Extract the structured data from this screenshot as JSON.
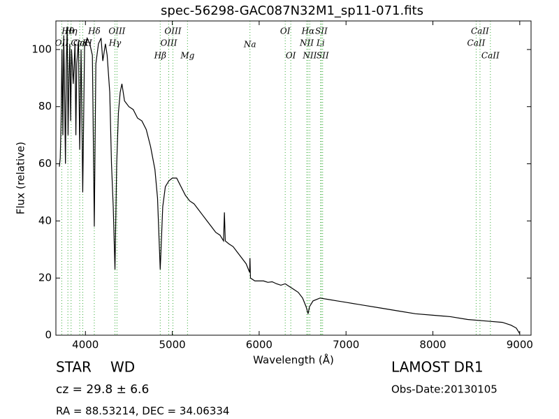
{
  "chart_data": {
    "type": "line",
    "title": "spec-56298-GAC087N32M1_sp11-071.fits",
    "xlabel": "Wavelength (Å)",
    "ylabel": "Flux (relative)",
    "xlim": [
      3660,
      9130
    ],
    "ylim": [
      0,
      110
    ],
    "xticks": [
      4000,
      5000,
      6000,
      7000,
      8000,
      9000
    ],
    "yticks": [
      0,
      20,
      40,
      60,
      80,
      100
    ],
    "series": [
      {
        "name": "flux",
        "color": "#000000",
        "x": [
          3700,
          3710,
          3720,
          3730,
          3740,
          3750,
          3760,
          3770,
          3780,
          3790,
          3800,
          3810,
          3820,
          3830,
          3840,
          3860,
          3880,
          3890,
          3900,
          3920,
          3934,
          3950,
          3969,
          3990,
          4020,
          4050,
          4080,
          4102,
          4120,
          4150,
          4180,
          4200,
          4230,
          4250,
          4280,
          4300,
          4320,
          4340,
          4360,
          4380,
          4400,
          4420,
          4450,
          4500,
          4550,
          4600,
          4650,
          4700,
          4750,
          4800,
          4830,
          4861,
          4890,
          4920,
          4960,
          5000,
          5050,
          5100,
          5150,
          5200,
          5250,
          5300,
          5350,
          5400,
          5450,
          5500,
          5550,
          5590,
          5600,
          5610,
          5650,
          5700,
          5750,
          5800,
          5850,
          5890,
          5894,
          5900,
          5950,
          6000,
          6050,
          6100,
          6150,
          6200,
          6250,
          6300,
          6350,
          6400,
          6450,
          6500,
          6540,
          6563,
          6580,
          6620,
          6700,
          6800,
          6900,
          7000,
          7200,
          7400,
          7600,
          7800,
          8000,
          8200,
          8400,
          8600,
          8800,
          8900,
          8960,
          9000
        ],
        "values": [
          59,
          62,
          75,
          100,
          70,
          105,
          85,
          60,
          95,
          108,
          70,
          90,
          102,
          75,
          100,
          88,
          102,
          70,
          95,
          103,
          65,
          100,
          50,
          101,
          104,
          102,
          98,
          38,
          95,
          102,
          104,
          96,
          102,
          98,
          85,
          60,
          45,
          23,
          60,
          78,
          85,
          88,
          82,
          80,
          79,
          76,
          75,
          72,
          66,
          58,
          48,
          23,
          45,
          52,
          54,
          55,
          55,
          52,
          49,
          47,
          46,
          44,
          42,
          40,
          38,
          36,
          35,
          33,
          43,
          33,
          32,
          31,
          29,
          27,
          25,
          22,
          27,
          20,
          19,
          19,
          19,
          18.5,
          18.7,
          18,
          17.5,
          18,
          17,
          16,
          15,
          13,
          10,
          7.5,
          10,
          12,
          13,
          12.5,
          12,
          11.5,
          10.5,
          9.5,
          8.5,
          7.5,
          7,
          6.5,
          5.5,
          5,
          4.5,
          3.5,
          2.5,
          0.5
        ]
      }
    ],
    "lines": {
      "color": "#33aa33",
      "labels": [
        "OII",
        "Hθ",
        "Hη",
        "CaK",
        "CaH",
        "Hδ",
        "Hγ",
        "OIII",
        "Hβ",
        "OIII",
        "OIII",
        "Mg",
        "Na",
        "OI",
        "OI",
        "NII",
        "Hα",
        "NII",
        "Li",
        "SII",
        "SII",
        "CaII",
        "CaII",
        "CaII"
      ],
      "x": [
        3727,
        3798,
        3835,
        3934,
        3969,
        4102,
        4340,
        4363,
        4861,
        4959,
        5007,
        5175,
        5894,
        6300,
        6364,
        6548,
        6563,
        6583,
        6707,
        6716,
        6731,
        8498,
        8542,
        8662
      ]
    },
    "class": "STAR",
    "subclass": "WD",
    "redshift": "cz = 29.8 ± 6.6",
    "coords": "RA = 88.53214, DEC = 34.06334",
    "survey": "LAMOST DR1",
    "obsdate": "Obs-Date:20130105"
  }
}
